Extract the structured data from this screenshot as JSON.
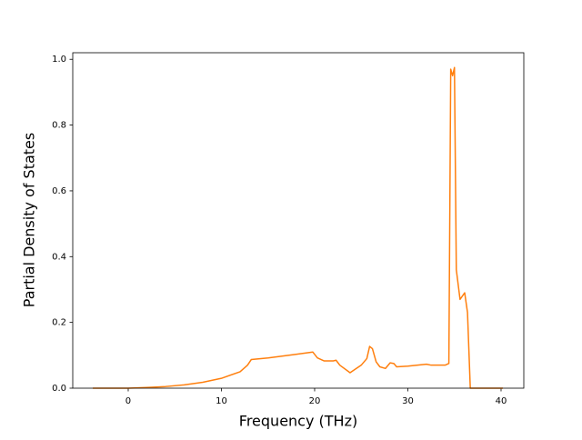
{
  "chart_data": {
    "type": "line",
    "xlabel": "Frequency (THz)",
    "ylabel": "Partial Density of States",
    "x": [
      -3.8,
      0,
      2,
      4,
      6,
      8,
      10,
      12,
      12.8,
      13.2,
      15,
      18,
      19.8,
      20.3,
      21,
      22,
      22.3,
      22.7,
      23.8,
      25,
      25.6,
      25.9,
      26.2,
      26.6,
      27,
      27.6,
      28.1,
      28.5,
      28.8,
      30,
      32,
      32.5,
      34,
      34.4,
      34.6,
      34.8,
      35,
      35.2,
      35.6,
      36.1,
      36.4,
      36.7,
      37,
      40.2
    ],
    "series": [
      {
        "color": "#ff7f0e",
        "values": [
          0,
          0,
          0.002,
          0.005,
          0.01,
          0.018,
          0.03,
          0.05,
          0.07,
          0.087,
          0.092,
          0.103,
          0.11,
          0.092,
          0.083,
          0.083,
          0.085,
          0.07,
          0.047,
          0.07,
          0.09,
          0.127,
          0.12,
          0.08,
          0.065,
          0.06,
          0.077,
          0.075,
          0.065,
          0.067,
          0.073,
          0.07,
          0.07,
          0.075,
          0.97,
          0.95,
          0.975,
          0.36,
          0.27,
          0.29,
          0.23,
          0,
          0,
          0
        ]
      }
    ],
    "xlim": [
      -5.95,
      42.44
    ],
    "xticks": [
      0,
      10,
      20,
      30,
      40
    ],
    "ylim": [
      0,
      1.02
    ],
    "yticks": [
      {
        "value": 0,
        "label": "0.0"
      },
      {
        "value": 0.2,
        "label": "0.2"
      },
      {
        "value": 0.4,
        "label": "0.4"
      },
      {
        "value": 0.6,
        "label": "0.6"
      },
      {
        "value": 0.8,
        "label": "0.8"
      },
      {
        "value": 1.0,
        "label": "1.0"
      }
    ],
    "grid": false
  }
}
